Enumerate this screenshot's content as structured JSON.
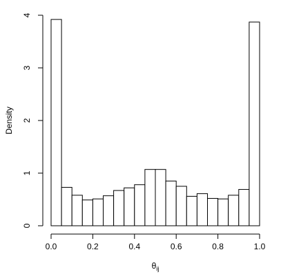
{
  "chart_data": {
    "type": "histogram",
    "xlabel": "θ",
    "xlabel_subscript": "ij",
    "ylabel": "Density",
    "bins": [
      0,
      0.05,
      0.1,
      0.15,
      0.2,
      0.25,
      0.3,
      0.35,
      0.4,
      0.45,
      0.5,
      0.55,
      0.6,
      0.65,
      0.7,
      0.75,
      0.8,
      0.85,
      0.9,
      0.95,
      1
    ],
    "values": [
      3.92,
      0.73,
      0.58,
      0.49,
      0.51,
      0.57,
      0.67,
      0.72,
      0.78,
      1.07,
      1.07,
      0.85,
      0.75,
      0.56,
      0.61,
      0.52,
      0.51,
      0.58,
      0.69,
      3.87
    ],
    "color": "#ffffff",
    "edgecolor": "#000000",
    "xlim": [
      0,
      1
    ],
    "xticks": [
      {
        "value": 0,
        "label": "0.0"
      },
      0.2,
      0.4,
      0.6,
      0.8,
      {
        "value": 1,
        "label": "1.0"
      }
    ],
    "ylim": [
      0,
      4
    ],
    "yticks": [
      0,
      1,
      2,
      3,
      4
    ]
  }
}
